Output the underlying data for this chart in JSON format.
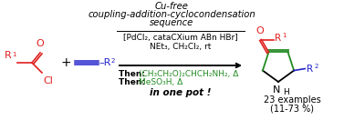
{
  "title_line1": "Cu-free",
  "title_line2": "coupling-addition-cyclocondensation",
  "title_line3": "sequence",
  "reagents_line1": "[PdCl₂, cataCXium ABn HBr]",
  "reagents_line2": "NEt₃, CH₂Cl₂, rt",
  "then_label": "Then:",
  "then_line1_green": "(CH₃CH₂O)₂CHCH₂NH₂, Δ",
  "then_line2_green": "MeSO₃H, Δ",
  "inpot": "in one pot !",
  "examples": "23 examples",
  "yield_str": "(11-73 %)",
  "bg_color": "#ffffff",
  "arrow_color": "#000000",
  "red_color": "#e02020",
  "blue_color": "#2222cc",
  "green_color": "#228B22",
  "black_color": "#000000",
  "title_fontsize": 7.2,
  "reagents_fontsize": 6.5,
  "then_fontsize": 6.5,
  "examples_fontsize": 7.0,
  "struct_fontsize": 8.0
}
